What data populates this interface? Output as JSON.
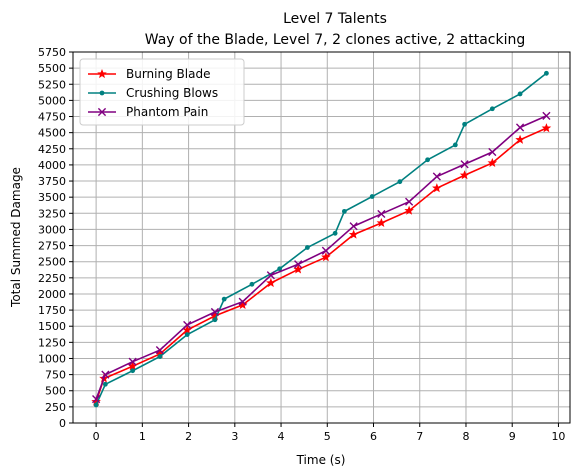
{
  "chart_data": {
    "type": "line",
    "title": "Level 7 Talents",
    "subtitle": "Way of the Blade, Level 7, 2 clones active, 2 attacking",
    "xlabel": "Time (s)",
    "ylabel": "Total Summed Damage",
    "xlim": [
      -0.5,
      10.25
    ],
    "ylim": [
      0,
      5750
    ],
    "xticks": [
      0,
      1,
      2,
      3,
      4,
      5,
      6,
      7,
      8,
      9,
      10
    ],
    "yticks": [
      0,
      250,
      500,
      750,
      1000,
      1250,
      1500,
      1750,
      2000,
      2250,
      2500,
      2750,
      3000,
      3250,
      3500,
      3750,
      4000,
      4250,
      4500,
      4750,
      5000,
      5250,
      5500,
      5750
    ],
    "grid": true,
    "legend_position": "upper-left",
    "series": [
      {
        "name": "Burning Blade",
        "color": "#ff0000",
        "marker": "star",
        "x": [
          0,
          0.17,
          0.79,
          1.38,
          1.97,
          2.57,
          3.17,
          3.78,
          4.37,
          4.97,
          5.57,
          6.17,
          6.77,
          7.37,
          7.97,
          8.57,
          9.17,
          9.74
        ],
        "y": [
          330,
          690,
          880,
          1070,
          1440,
          1660,
          1830,
          2170,
          2380,
          2570,
          2920,
          3100,
          3290,
          3640,
          3840,
          4030,
          4390,
          4570
        ]
      },
      {
        "name": "Crushing Blows",
        "color": "#008080",
        "marker": "dot",
        "x": [
          0,
          0.2,
          0.79,
          1.38,
          1.97,
          2.57,
          2.77,
          3.37,
          3.97,
          4.57,
          5.17,
          5.37,
          5.97,
          6.57,
          7.17,
          7.77,
          7.97,
          8.57,
          9.17,
          9.74
        ],
        "y": [
          280,
          600,
          810,
          1030,
          1370,
          1600,
          1920,
          2150,
          2390,
          2720,
          2940,
          3280,
          3510,
          3740,
          4080,
          4310,
          4630,
          4870,
          5100,
          5420
        ]
      },
      {
        "name": "Phantom Pain",
        "color": "#800080",
        "marker": "x",
        "x": [
          0,
          0.2,
          0.79,
          1.38,
          1.97,
          2.57,
          3.17,
          3.78,
          4.37,
          4.97,
          5.57,
          6.17,
          6.77,
          7.37,
          7.97,
          8.57,
          9.17,
          9.74
        ],
        "y": [
          370,
          750,
          950,
          1130,
          1520,
          1720,
          1880,
          2290,
          2460,
          2670,
          3050,
          3240,
          3430,
          3820,
          4010,
          4200,
          4580,
          4760
        ]
      }
    ]
  }
}
